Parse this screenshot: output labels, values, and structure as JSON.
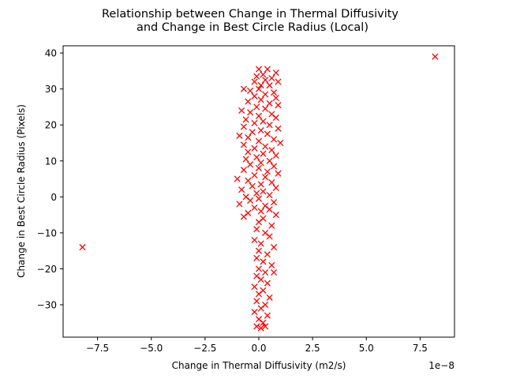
{
  "chart_data": {
    "type": "scatter",
    "title_lines": [
      "Relationship between Change in Thermal Diffusivity",
      "and Change in Best Circle Radius (Local)"
    ],
    "xlabel": "Change in Thermal Diffusivity (m2/s)",
    "ylabel": "Change in Best Circle Radius (Pixels)",
    "x_offset_text": "1e−8",
    "xlim": [
      -9.1,
      9.1
    ],
    "ylim": [
      -39,
      42
    ],
    "x_ticks": [
      {
        "value": -7.5,
        "label": "−7.5"
      },
      {
        "value": -5.0,
        "label": "−5.0"
      },
      {
        "value": -2.5,
        "label": "−2.5"
      },
      {
        "value": 0.0,
        "label": "0.0"
      },
      {
        "value": 2.5,
        "label": "2.5"
      },
      {
        "value": 5.0,
        "label": "5.0"
      },
      {
        "value": 7.5,
        "label": "7.5"
      }
    ],
    "y_ticks": [
      {
        "value": -30,
        "label": "−30"
      },
      {
        "value": -20,
        "label": "−20"
      },
      {
        "value": -10,
        "label": "−10"
      },
      {
        "value": 0,
        "label": "0"
      },
      {
        "value": 10,
        "label": "10"
      },
      {
        "value": 20,
        "label": "20"
      },
      {
        "value": 30,
        "label": "30"
      },
      {
        "value": 40,
        "label": "40"
      }
    ],
    "marker": "x",
    "color": "#ff0000",
    "grid": false,
    "legend": "none",
    "points": [
      {
        "x": -8.2,
        "y": -14
      },
      {
        "x": 8.2,
        "y": 39
      },
      {
        "x": 0.0,
        "y": 35.5
      },
      {
        "x": 0.4,
        "y": 35.5
      },
      {
        "x": 0.8,
        "y": 34.5
      },
      {
        "x": 0.2,
        "y": 34
      },
      {
        "x": -0.1,
        "y": 33.5
      },
      {
        "x": 0.6,
        "y": 33
      },
      {
        "x": -0.2,
        "y": 32
      },
      {
        "x": 0.3,
        "y": 32.5
      },
      {
        "x": 0.9,
        "y": 32
      },
      {
        "x": 0.1,
        "y": 31
      },
      {
        "x": 0.5,
        "y": 31
      },
      {
        "x": -0.7,
        "y": 30
      },
      {
        "x": -0.4,
        "y": 29.5
      },
      {
        "x": 0.0,
        "y": 30
      },
      {
        "x": 0.7,
        "y": 29
      },
      {
        "x": 0.3,
        "y": 28.5
      },
      {
        "x": -0.2,
        "y": 28
      },
      {
        "x": 0.8,
        "y": 27.5
      },
      {
        "x": 0.1,
        "y": 27
      },
      {
        "x": -0.5,
        "y": 26.5
      },
      {
        "x": 0.5,
        "y": 26
      },
      {
        "x": 0.9,
        "y": 25.5
      },
      {
        "x": -0.1,
        "y": 25
      },
      {
        "x": 0.3,
        "y": 24.5
      },
      {
        "x": -0.8,
        "y": 24
      },
      {
        "x": -0.4,
        "y": 23.5
      },
      {
        "x": 0.6,
        "y": 23
      },
      {
        "x": 0.0,
        "y": 22.5
      },
      {
        "x": 0.8,
        "y": 22
      },
      {
        "x": -0.6,
        "y": 21.5
      },
      {
        "x": 0.2,
        "y": 21
      },
      {
        "x": -0.2,
        "y": 20.5
      },
      {
        "x": 0.5,
        "y": 20
      },
      {
        "x": -0.7,
        "y": 19.5
      },
      {
        "x": 0.9,
        "y": 19
      },
      {
        "x": 0.1,
        "y": 18.5
      },
      {
        "x": -0.3,
        "y": 18
      },
      {
        "x": 0.4,
        "y": 17.5
      },
      {
        "x": -0.9,
        "y": 17
      },
      {
        "x": -0.5,
        "y": 16.5
      },
      {
        "x": 0.7,
        "y": 16
      },
      {
        "x": 0.0,
        "y": 15.5
      },
      {
        "x": 1.0,
        "y": 15
      },
      {
        "x": -0.7,
        "y": 14.5
      },
      {
        "x": 0.3,
        "y": 14
      },
      {
        "x": -0.2,
        "y": 13.5
      },
      {
        "x": 0.6,
        "y": 13
      },
      {
        "x": -0.5,
        "y": 12.5
      },
      {
        "x": 0.2,
        "y": 12
      },
      {
        "x": 0.8,
        "y": 11.5
      },
      {
        "x": -0.1,
        "y": 11
      },
      {
        "x": -0.6,
        "y": 10.5
      },
      {
        "x": 0.5,
        "y": 10
      },
      {
        "x": 0.1,
        "y": 9.5
      },
      {
        "x": -0.4,
        "y": 9
      },
      {
        "x": 0.7,
        "y": 8.5
      },
      {
        "x": 0.0,
        "y": 8
      },
      {
        "x": -0.7,
        "y": 7.5
      },
      {
        "x": 0.4,
        "y": 7
      },
      {
        "x": 0.9,
        "y": 6.5
      },
      {
        "x": -0.2,
        "y": 6
      },
      {
        "x": 0.3,
        "y": 5.5
      },
      {
        "x": -1.0,
        "y": 5
      },
      {
        "x": -0.5,
        "y": 4.5
      },
      {
        "x": 0.6,
        "y": 4
      },
      {
        "x": 0.1,
        "y": 3.5
      },
      {
        "x": -0.3,
        "y": 3
      },
      {
        "x": 0.8,
        "y": 2.5
      },
      {
        "x": -0.8,
        "y": 2
      },
      {
        "x": 0.2,
        "y": 1.5
      },
      {
        "x": -0.1,
        "y": 1
      },
      {
        "x": 0.5,
        "y": 0.5
      },
      {
        "x": -0.6,
        "y": 0
      },
      {
        "x": 0.0,
        "y": -0.5
      },
      {
        "x": -0.4,
        "y": -1
      },
      {
        "x": 0.7,
        "y": -1.5
      },
      {
        "x": -0.9,
        "y": -2
      },
      {
        "x": 0.3,
        "y": -2.5
      },
      {
        "x": -0.2,
        "y": -3
      },
      {
        "x": 0.5,
        "y": -3.5
      },
      {
        "x": 0.1,
        "y": -4
      },
      {
        "x": -0.5,
        "y": -4.5
      },
      {
        "x": 0.8,
        "y": -5
      },
      {
        "x": -0.7,
        "y": -5.5
      },
      {
        "x": 0.2,
        "y": -6
      },
      {
        "x": 0.0,
        "y": -7
      },
      {
        "x": 0.6,
        "y": -8
      },
      {
        "x": -0.1,
        "y": -9
      },
      {
        "x": 0.3,
        "y": -10
      },
      {
        "x": 0.5,
        "y": -11
      },
      {
        "x": -0.2,
        "y": -12
      },
      {
        "x": 0.1,
        "y": -13
      },
      {
        "x": 0.7,
        "y": -14
      },
      {
        "x": 0.0,
        "y": -15
      },
      {
        "x": 0.4,
        "y": -16
      },
      {
        "x": -0.1,
        "y": -17
      },
      {
        "x": 0.2,
        "y": -18
      },
      {
        "x": 0.6,
        "y": -19
      },
      {
        "x": 0.0,
        "y": -20
      },
      {
        "x": 0.3,
        "y": -21
      },
      {
        "x": 0.7,
        "y": -21
      },
      {
        "x": -0.1,
        "y": -22
      },
      {
        "x": 0.1,
        "y": -23
      },
      {
        "x": 0.4,
        "y": -24
      },
      {
        "x": -0.2,
        "y": -25
      },
      {
        "x": 0.2,
        "y": -26
      },
      {
        "x": 0.0,
        "y": -27
      },
      {
        "x": 0.5,
        "y": -28
      },
      {
        "x": -0.1,
        "y": -29
      },
      {
        "x": 0.3,
        "y": -30
      },
      {
        "x": 0.1,
        "y": -31
      },
      {
        "x": -0.2,
        "y": -32
      },
      {
        "x": 0.4,
        "y": -33
      },
      {
        "x": 0.0,
        "y": -34
      },
      {
        "x": 0.2,
        "y": -35
      },
      {
        "x": -0.1,
        "y": -36
      },
      {
        "x": 0.3,
        "y": -36
      },
      {
        "x": 0.1,
        "y": -36.5
      }
    ]
  }
}
